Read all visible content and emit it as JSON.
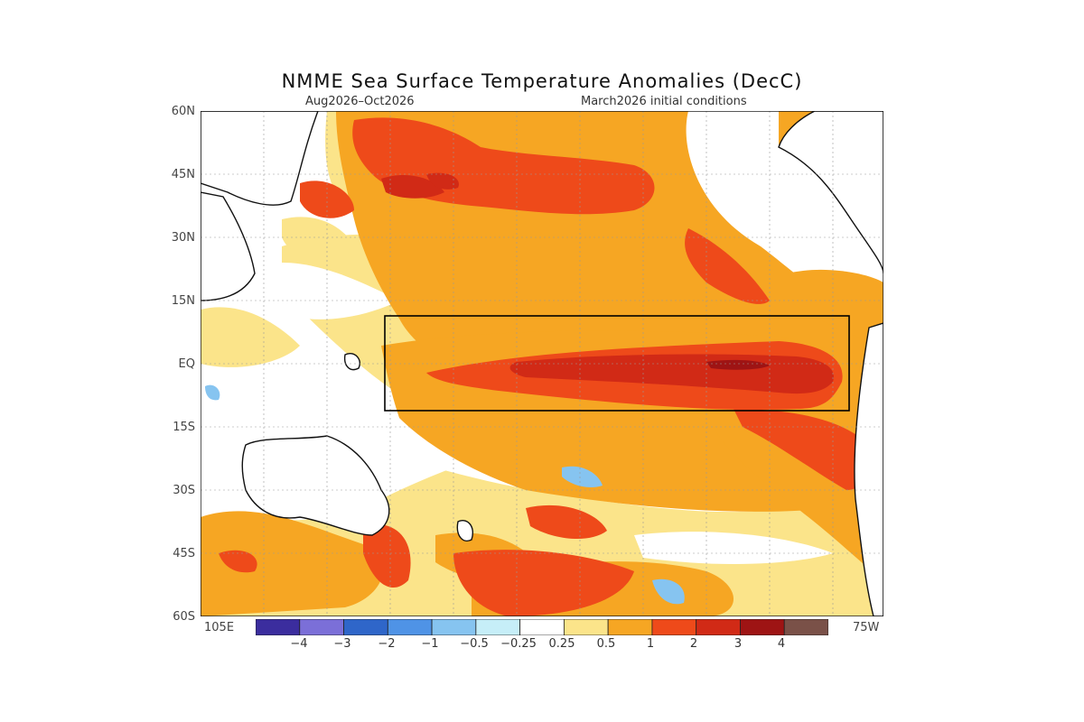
{
  "title": "NMME Sea Surface Temperature Anomalies (DecC)",
  "subtitle_left": "Aug2026–Oct2026",
  "subtitle_right": "March2026 initial conditions",
  "lat_labels": [
    "60N",
    "45N",
    "30N",
    "15N",
    "EQ",
    "15S",
    "30S",
    "45S",
    "60S"
  ],
  "lon_labels": {
    "left": "105E",
    "right": "75W"
  },
  "colorbar": {
    "colors": [
      "#3b2d9e",
      "#7b6fd8",
      "#2f66c9",
      "#4f93e6",
      "#86c4f0",
      "#c6eef8",
      "#ffffff",
      "#fbe48a",
      "#f6a623",
      "#ee4a1a",
      "#d12a16",
      "#9e1414",
      "#7a5148"
    ],
    "labels": [
      "−4",
      "−3",
      "−2",
      "−1",
      "−0.5",
      "−0.25",
      "0.25",
      "0.5",
      "1",
      "2",
      "3",
      "4"
    ]
  },
  "map": {
    "region_box": "Niño 3.4-type box outlined in black",
    "palette": {
      "land": "#ffffff",
      "weak": "#fbe48a",
      "moderate": "#f6a623",
      "strong": "#ee4a1a",
      "very_strong": "#d12a16",
      "extreme": "#9e1414",
      "cool": "#86c4f0"
    }
  }
}
